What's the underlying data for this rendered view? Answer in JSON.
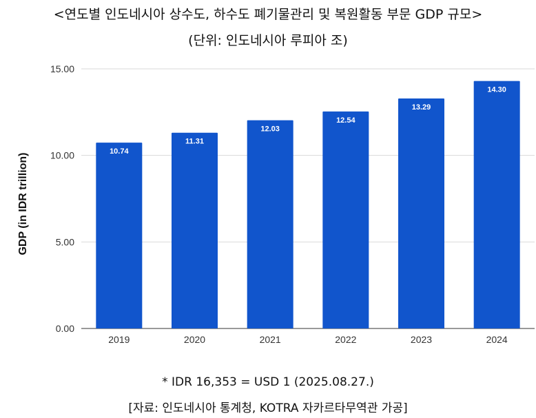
{
  "header": {
    "title": "<연도별 인도네시아 상수도, 하수도 폐기물관리 및 복원활동 부문 GDP 규모>",
    "unit": "(단위: 인도네시아 루피아 조)"
  },
  "footer": {
    "note": "* IDR 16,353 = USD 1 (2025.08.27.)",
    "source": "[자료: 인도네시아 통계청, KOTRA 자카르타무역관 가공]"
  },
  "colors": {
    "bar": "#1155CC",
    "grid": "#d9d9d9",
    "axis": "#333333"
  },
  "chart_data": {
    "type": "bar",
    "categories": [
      "2019",
      "2020",
      "2021",
      "2022",
      "2023",
      "2024"
    ],
    "values": [
      10.74,
      11.31,
      12.03,
      12.54,
      13.29,
      14.3
    ],
    "data_labels": [
      "10.74",
      "11.31",
      "12.03",
      "12.54",
      "13.29",
      "14.30"
    ],
    "ylabel": "GDP (in IDR trillion)",
    "xlabel": "",
    "ylim": [
      0,
      15
    ],
    "yticks": [
      0,
      5,
      10,
      15
    ],
    "ytick_labels": [
      "0.00",
      "5.00",
      "10.00",
      "15.00"
    ],
    "grid": true,
    "legend": "none"
  }
}
